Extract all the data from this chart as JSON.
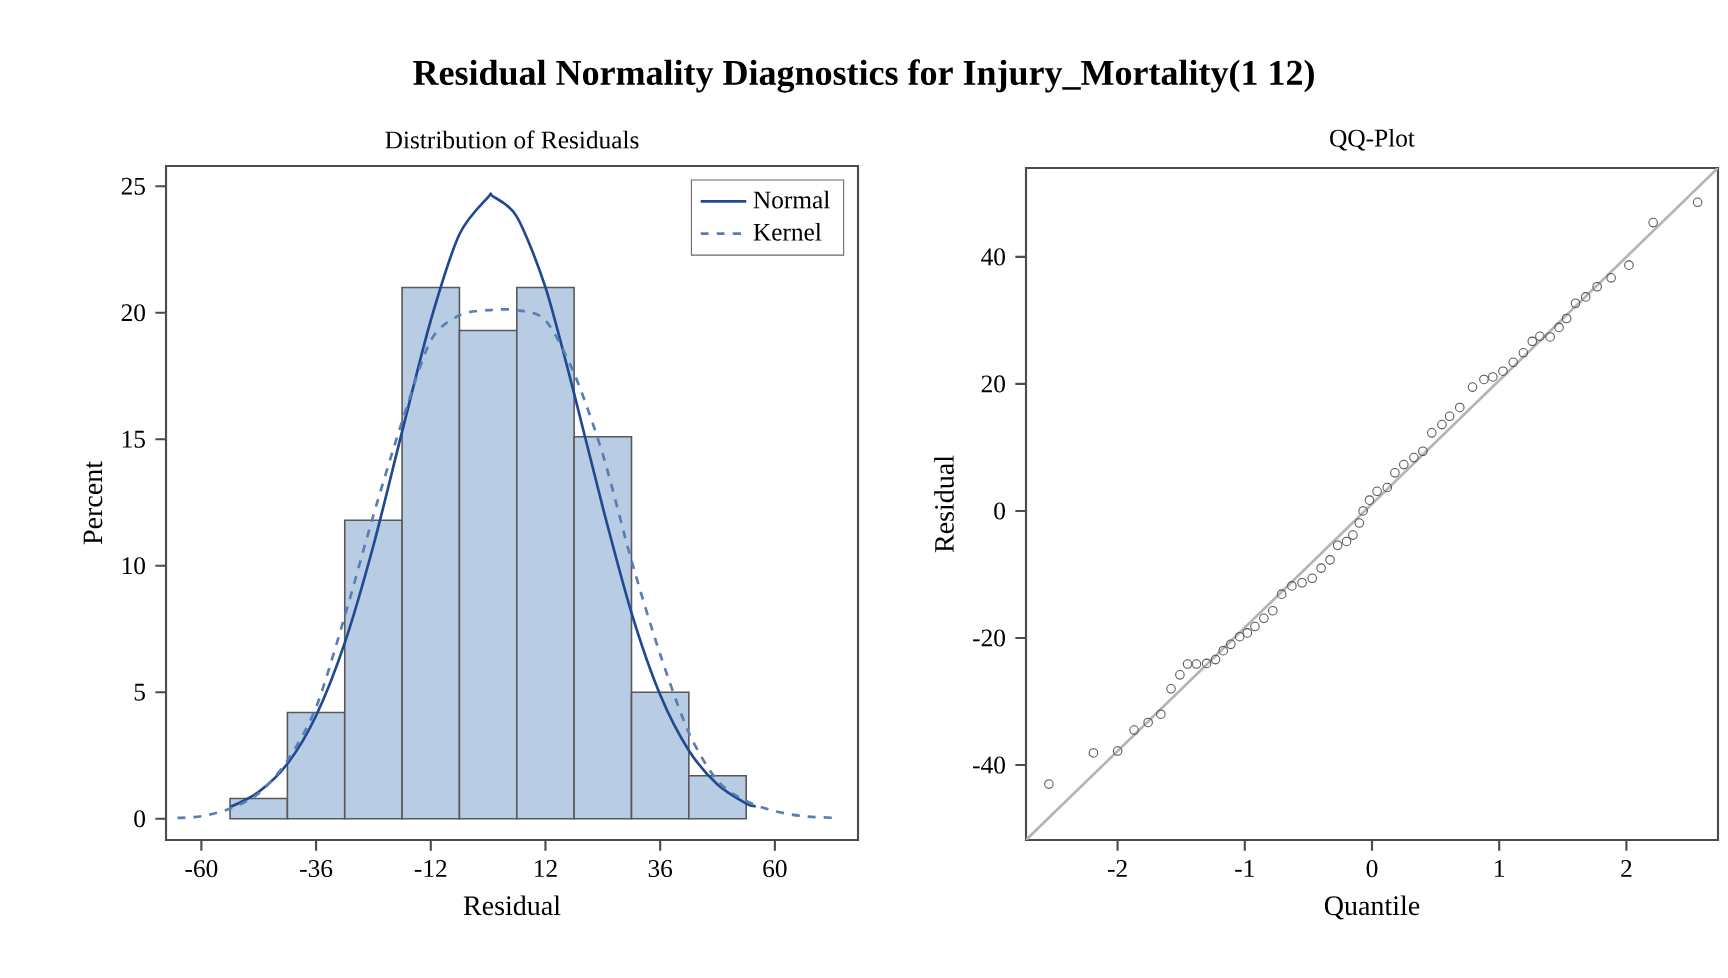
{
  "chart_data": [
    {
      "type": "histogram",
      "title": "Residual Normality Diagnostics for Injury_Mortality(1 12)",
      "subtitle": "Distribution of Residuals",
      "xlabel": "Residual",
      "ylabel": "Percent",
      "bins": [
        -54,
        -42,
        -30,
        -18,
        -6,
        6,
        18,
        30,
        42,
        54
      ],
      "values": [
        0.8,
        4.2,
        11.8,
        21,
        19.3,
        21,
        15.1,
        5,
        1.7
      ],
      "color": "#b8cce4",
      "series": [
        {
          "name": "Normal",
          "type": "line",
          "color": "#1f4a8f",
          "line_style": "solid",
          "x": [
            -54,
            -48,
            -42,
            -36,
            -30,
            -24,
            -18,
            -12,
            -6,
            0,
            1,
            6,
            12,
            18,
            24,
            30,
            36,
            42,
            48,
            54,
            56
          ],
          "values": [
            0.46,
            1.06,
            2.17,
            4.07,
            6.95,
            10.8,
            15.3,
            19.7,
            23.1,
            24.57,
            24.6,
            23.8,
            21.0,
            16.8,
            12.3,
            8.14,
            4.9,
            2.7,
            1.35,
            0.6,
            0.5
          ]
        },
        {
          "name": "Kernel",
          "type": "line",
          "color": "#5a7db5",
          "line_style": "dashed",
          "x": [
            -65,
            -60,
            -54,
            -48,
            -42,
            -36,
            -30,
            -24,
            -18,
            -12,
            -6,
            0,
            6,
            12,
            18,
            24,
            30,
            36,
            42,
            48,
            54,
            60,
            66,
            73
          ],
          "values": [
            0.03,
            0.1,
            0.4,
            1.0,
            2.3,
            4.4,
            8,
            12,
            15.7,
            18.9,
            19.9,
            20.1,
            20.1,
            19.7,
            17.6,
            14.4,
            10.2,
            6.5,
            3.4,
            1.5,
            0.7,
            0.3,
            0.1,
            0.03
          ]
        }
      ],
      "xlim": [
        -67.4,
        77.4
      ],
      "xticks": [
        -60,
        -36,
        -12,
        12,
        36,
        60
      ],
      "ylim": [
        -0.84,
        25.8
      ],
      "yticks": [
        0,
        5,
        10,
        15,
        20,
        25
      ],
      "legend": "top right"
    },
    {
      "type": "scatter",
      "title": "QQ-Plot",
      "xlabel": "Quantile",
      "ylabel": "Residual",
      "series": [
        {
          "type": "scatter",
          "marker": "circle",
          "color": "#555555",
          "x": [
            -2.54,
            -2.19,
            -2.0,
            -1.87,
            -1.76,
            -1.66,
            -1.58,
            -1.51,
            -1.45,
            -1.38,
            -1.3,
            -1.23,
            -1.17,
            -1.11,
            -1.04,
            -0.98,
            -0.92,
            -0.85,
            -0.78,
            -0.71,
            -0.63,
            -0.55,
            -0.47,
            -0.4,
            -0.33,
            -0.27,
            -0.2,
            -0.15,
            -0.1,
            -0.07,
            -0.02,
            0.04,
            0.12,
            0.18,
            0.25,
            0.33,
            0.4,
            0.47,
            0.55,
            0.61,
            0.69,
            0.79,
            0.88,
            0.95,
            1.03,
            1.11,
            1.19,
            1.26,
            1.32,
            1.4,
            1.47,
            1.53,
            1.6,
            1.68,
            1.77,
            1.88,
            2.02,
            2.21,
            2.56
          ],
          "values": [
            -43.0,
            -38.1,
            -37.8,
            -34.5,
            -33.3,
            -32.0,
            -28.0,
            -25.8,
            -24.1,
            -24.1,
            -24.0,
            -23.4,
            -22.0,
            -21.0,
            -19.8,
            -19.2,
            -18.2,
            -16.9,
            -15.7,
            -13.1,
            -11.8,
            -11.3,
            -10.6,
            -9.0,
            -7.7,
            -5.4,
            -4.8,
            -3.8,
            -1.9,
            0,
            1.7,
            3.1,
            3.7,
            6.0,
            7.3,
            8.4,
            9.4,
            12.3,
            13.6,
            14.9,
            16.3,
            19.5,
            20.7,
            21.1,
            22.0,
            23.4,
            24.9,
            26.7,
            27.5,
            27.4,
            28.9,
            30.3,
            32.7,
            33.7,
            35.3,
            36.7,
            38.7,
            45.4,
            48.6
          ]
        },
        {
          "type": "line",
          "color": "#b4b4b4",
          "x": [
            -2.72,
            2.72
          ],
          "values": [
            -51.8,
            54
          ]
        }
      ],
      "xlim": [
        -2.72,
        2.72
      ],
      "xticks": [
        -2,
        -1,
        0,
        1,
        2
      ],
      "ylim": [
        -51.8,
        54
      ],
      "yticks": [
        -40,
        -20,
        0,
        20,
        40
      ]
    }
  ]
}
